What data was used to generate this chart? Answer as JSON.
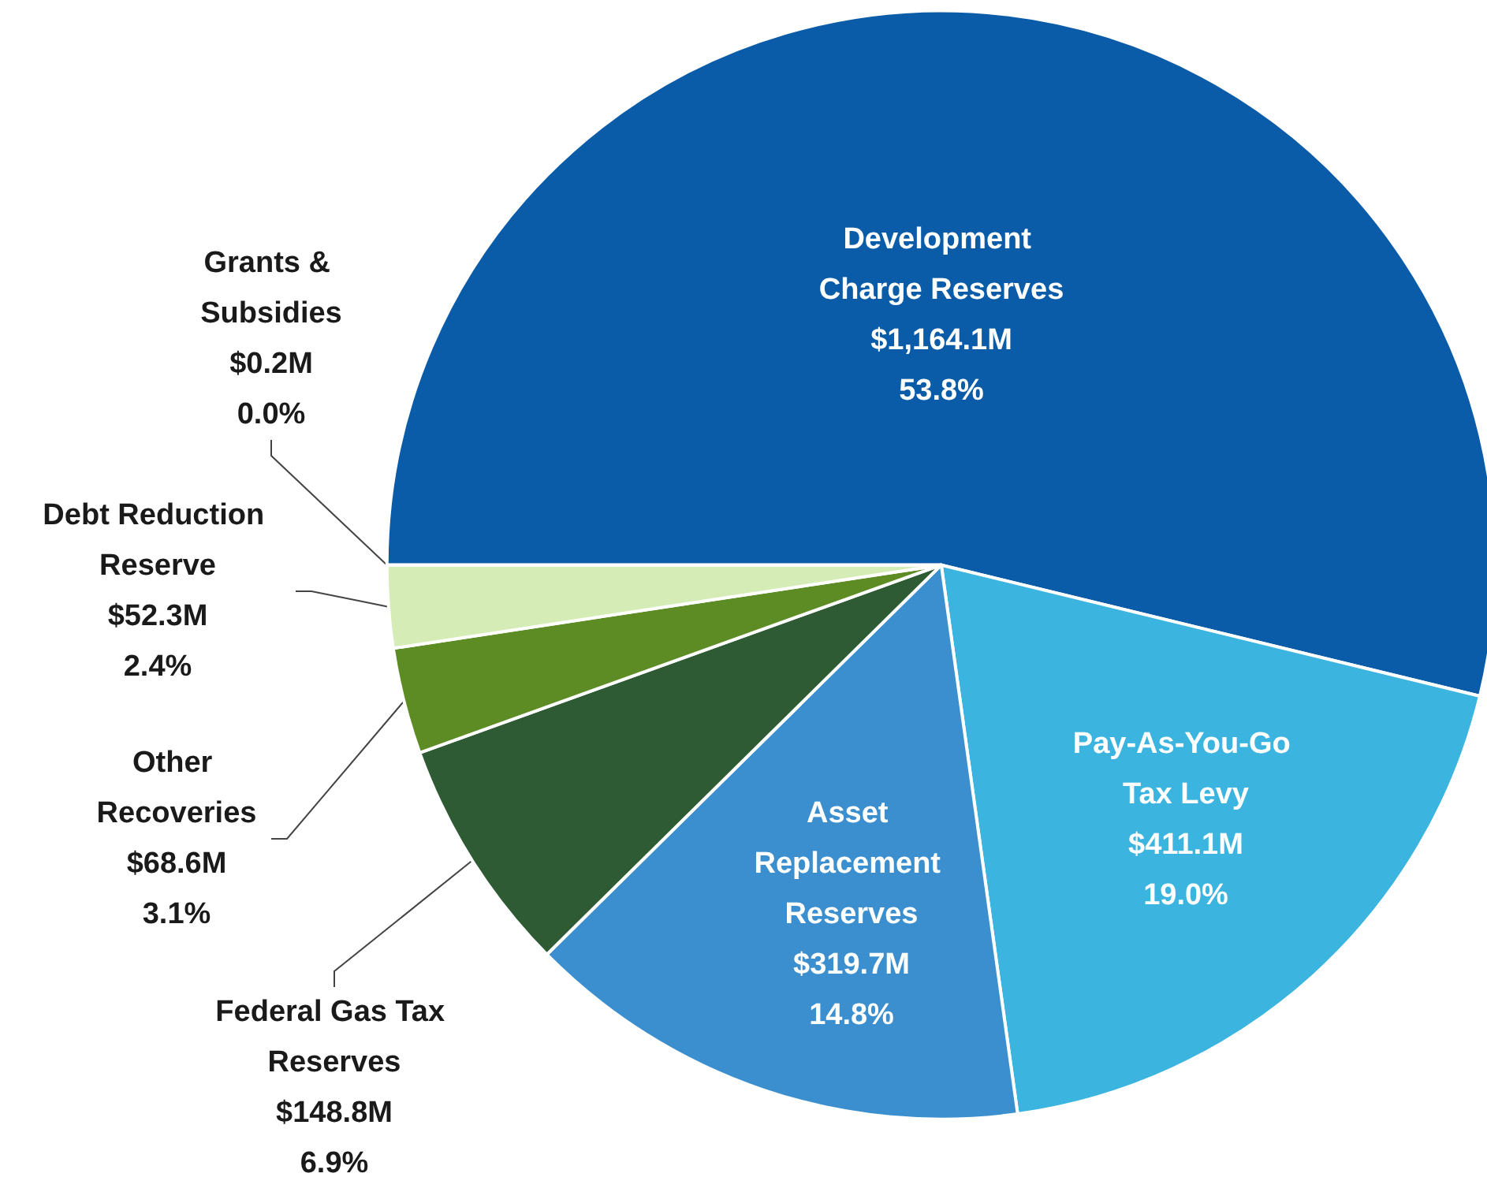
{
  "chart_data": {
    "type": "pie",
    "categories": [
      "Development Charge Reserves",
      "Pay-As-You-Go Tax Levy",
      "Asset Replacement Reserves",
      "Federal Gas Tax Reserves",
      "Other Recoveries",
      "Debt Reduction Reserve",
      "Grants & Subsidies"
    ],
    "values": [
      53.8,
      19.0,
      14.8,
      6.9,
      3.1,
      2.4,
      0.0
    ],
    "value_labels": [
      "$1,164.1M\n53.8%",
      "$411.1M\n19.0%",
      "$319.7M\n14.8%",
      "$148.8M\n6.9%",
      "$68.6M\n3.1%",
      "$52.3M\n2.4%",
      "$0.2M\n0.0%"
    ],
    "colors": [
      "#0b5ca8",
      "#3cb4e0",
      "#3b8fcf",
      "#2e5b33",
      "#5e8c24",
      "#d6ecb6",
      "#eef6e2"
    ],
    "legend": false
  }
}
